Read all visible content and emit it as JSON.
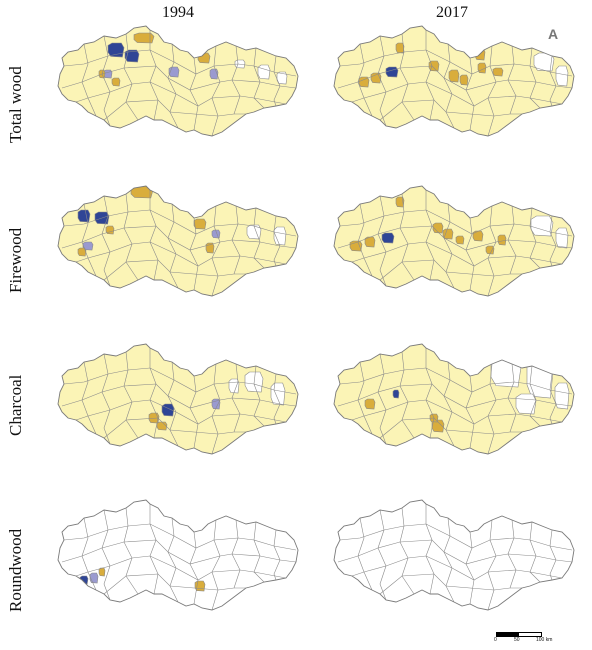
{
  "columns": [
    "1994",
    "2017"
  ],
  "rows": [
    "Total wood",
    "Firewood",
    "Charcoal",
    "Roundwood"
  ],
  "north_arrow": "A",
  "scale": {
    "ticks": [
      "0",
      "50",
      "100 km"
    ]
  },
  "colors": {
    "outline": "#8a8a8a",
    "none": "#ffffff",
    "low": "#fbf4b6",
    "mid": "#d9ad3c",
    "mid_high": "#9a9ad0",
    "high": "#2f4596"
  }
}
